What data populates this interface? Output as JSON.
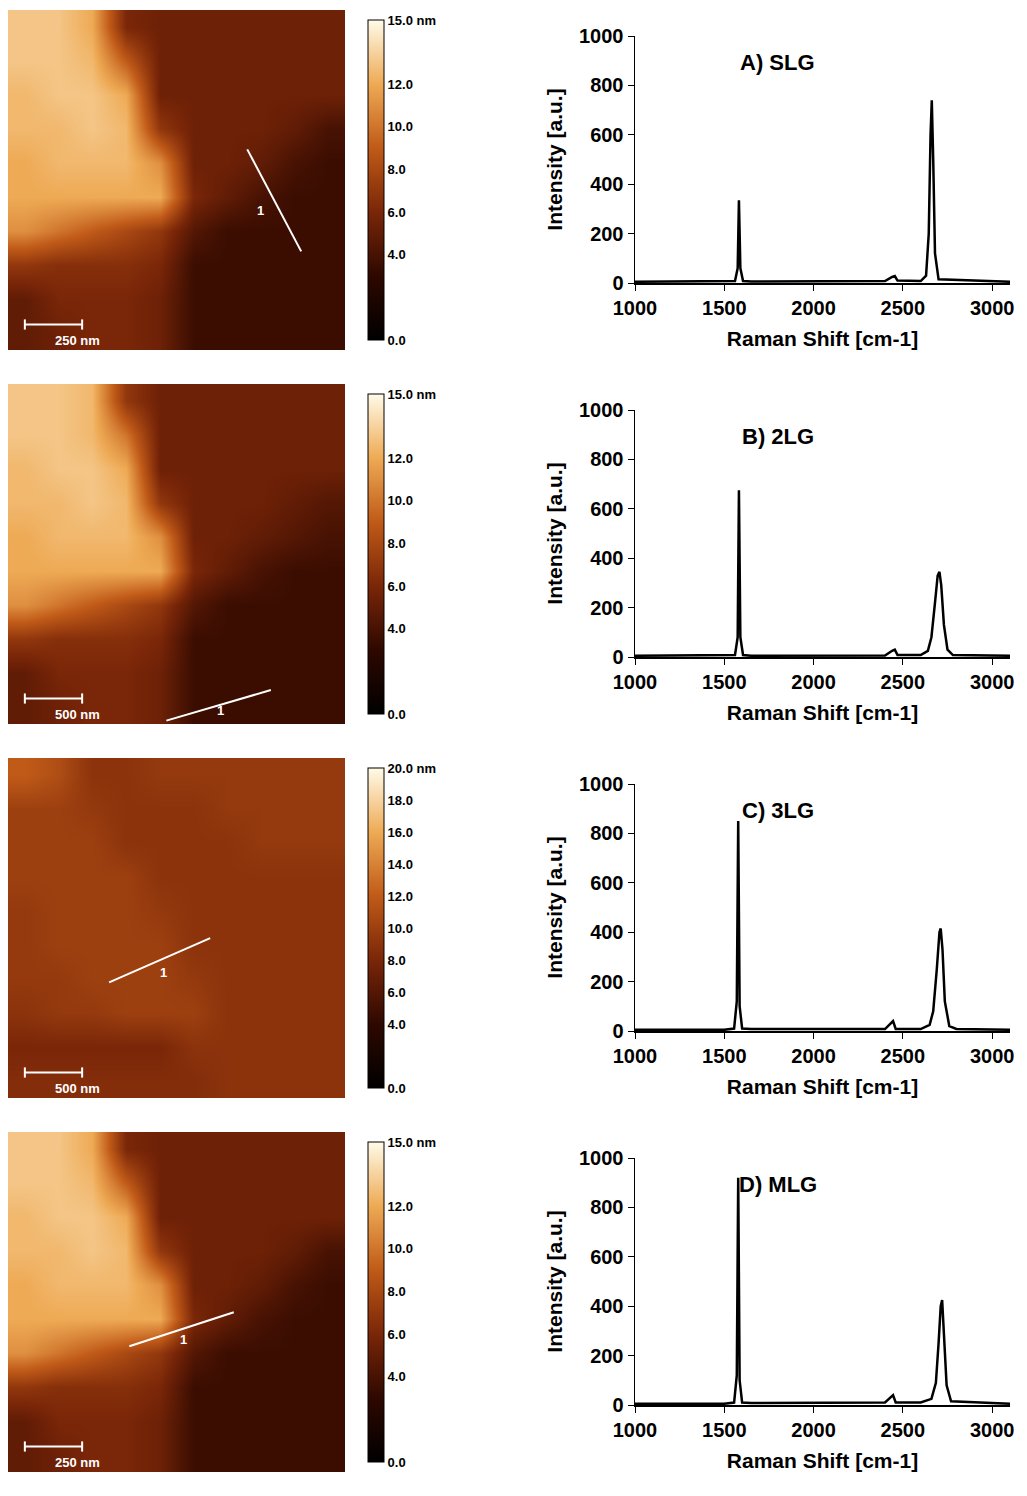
{
  "chart_data": [
    {
      "type": "heatmap",
      "z": [
        [
          13,
          13,
          12,
          6,
          5.5,
          5.5,
          5.5,
          5.5,
          5.5,
          5.5
        ],
        [
          13,
          13,
          12.5,
          9,
          5.5,
          5.5,
          5.5,
          5.5,
          5.5,
          5.5
        ],
        [
          12.5,
          13,
          13,
          12,
          5.5,
          5.5,
          5.5,
          5.5,
          5.5,
          5.5
        ],
        [
          12.5,
          12.5,
          13,
          12.5,
          7,
          5.5,
          5.5,
          5.5,
          5,
          4
        ],
        [
          12,
          12.5,
          12.5,
          12.5,
          11,
          5.5,
          5.5,
          5,
          4,
          3.5
        ],
        [
          12,
          12,
          12,
          12,
          12,
          6,
          5,
          4,
          3.5,
          3.5
        ],
        [
          11,
          10,
          9,
          8,
          7,
          4.5,
          3.5,
          3.5,
          3.5,
          3.5
        ],
        [
          7,
          6.5,
          6.5,
          6.5,
          6,
          3.5,
          3.5,
          3.5,
          3.5,
          3.5
        ],
        [
          5,
          6,
          6,
          6,
          5.5,
          3.5,
          3.5,
          3.5,
          3.5,
          3.5
        ],
        [
          5,
          5.5,
          6,
          6,
          5.5,
          3.5,
          3.5,
          3.5,
          3.5,
          3.5
        ]
      ],
      "zlim": [
        0,
        15
      ],
      "zticks": [
        {
          "value": 15,
          "label": "15.0 nm"
        },
        {
          "value": 12,
          "label": "12.0"
        },
        {
          "value": 10,
          "label": "10.0"
        },
        {
          "value": 8,
          "label": "8.0"
        },
        {
          "value": 6,
          "label": "6.0"
        },
        {
          "value": 4,
          "label": "4.0"
        },
        {
          "value": 0,
          "label": "0.0"
        }
      ],
      "scale_bar": "250 nm",
      "profile": {
        "label": "1",
        "x": [
          6.6,
          8.2
        ],
        "y": [
          3.6,
          6.6
        ],
        "label_x": 7.0,
        "label_y": 5.4
      }
    },
    {
      "type": "line",
      "title": "A) SLG",
      "x_label": "Raman Shift [cm-1]",
      "y_label": "Intensity [a.u.]",
      "color": "#000000",
      "x": [
        1000,
        1500,
        1560,
        1575,
        1582,
        1590,
        1605,
        1650,
        2400,
        2440,
        2455,
        2470,
        2600,
        2630,
        2645,
        2655,
        2662,
        2670,
        2680,
        2700,
        3100
      ],
      "values": [
        5,
        5,
        8,
        60,
        335,
        60,
        8,
        6,
        8,
        25,
        28,
        10,
        8,
        30,
        200,
        600,
        740,
        500,
        120,
        15,
        5
      ],
      "xlim": [
        1000,
        3100
      ],
      "xticks": [
        1000,
        1500,
        2000,
        2500,
        3000
      ],
      "ylim": [
        0,
        1000
      ],
      "yticks": [
        0,
        200,
        400,
        600,
        800,
        1000
      ]
    },
    {
      "type": "heatmap",
      "z": [
        [
          13,
          13,
          12.5,
          7,
          5.5,
          5.5,
          5.5,
          5.5,
          5.5,
          5.5
        ],
        [
          13,
          13,
          12.5,
          10,
          5.5,
          5.5,
          5.5,
          5.5,
          5.5,
          5.5
        ],
        [
          12.5,
          13,
          13,
          12,
          5.5,
          5.5,
          5.5,
          5.5,
          5.5,
          5.5
        ],
        [
          12.5,
          12.5,
          13,
          12.5,
          7,
          5.5,
          5.5,
          5.5,
          5,
          4.5
        ],
        [
          12,
          12.5,
          12.5,
          12.5,
          11,
          5.5,
          5.5,
          5,
          4.5,
          4
        ],
        [
          12,
          12,
          12,
          12,
          12,
          6,
          5,
          4,
          3.5,
          3.5
        ],
        [
          11,
          10,
          9,
          8,
          7,
          4.5,
          3.5,
          3.5,
          3.5,
          3.5
        ],
        [
          7,
          6.5,
          6.5,
          6.5,
          6,
          3.5,
          3.5,
          3.5,
          3.5,
          3.5
        ],
        [
          5,
          6,
          6,
          6,
          5.5,
          3.5,
          3.5,
          3.5,
          3.5,
          3.5
        ],
        [
          5,
          5.5,
          6,
          6,
          5.5,
          3.5,
          3.5,
          3.5,
          3.5,
          3.5
        ]
      ],
      "zlim": [
        0,
        15
      ],
      "zticks": [
        {
          "value": 15,
          "label": "15.0 nm"
        },
        {
          "value": 12,
          "label": "12.0"
        },
        {
          "value": 10,
          "label": "10.0"
        },
        {
          "value": 8,
          "label": "8.0"
        },
        {
          "value": 6,
          "label": "6.0"
        },
        {
          "value": 4,
          "label": "4.0"
        },
        {
          "value": 0,
          "label": "0.0"
        }
      ],
      "scale_bar": "500 nm",
      "profile": {
        "label": "1",
        "x": [
          4.2,
          7.3
        ],
        "y": [
          9.4,
          8.5
        ],
        "label_x": 5.8,
        "label_y": 9.1
      }
    },
    {
      "type": "line",
      "title": "B) 2LG",
      "x_label": "Raman Shift [cm-1]",
      "y_label": "Intensity [a.u.]",
      "color": "#000000",
      "x": [
        1000,
        1500,
        1560,
        1575,
        1582,
        1590,
        1605,
        1650,
        2400,
        2440,
        2455,
        2470,
        2600,
        2640,
        2660,
        2680,
        2695,
        2705,
        2715,
        2730,
        2750,
        2780,
        3100
      ],
      "values": [
        5,
        5,
        8,
        80,
        675,
        80,
        8,
        5,
        6,
        25,
        30,
        8,
        8,
        25,
        80,
        220,
        330,
        345,
        290,
        130,
        30,
        8,
        5
      ],
      "xlim": [
        1000,
        3100
      ],
      "xticks": [
        1000,
        1500,
        2000,
        2500,
        3000
      ],
      "ylim": [
        0,
        1000
      ],
      "yticks": [
        0,
        200,
        400,
        600,
        800,
        1000
      ]
    },
    {
      "type": "heatmap",
      "z": [
        [
          12,
          11,
          9,
          9,
          9.5,
          9.5,
          9.5,
          9.5,
          9.5,
          9.5
        ],
        [
          10,
          10,
          9.5,
          9,
          9,
          9,
          9.5,
          9.5,
          9.5,
          9.5
        ],
        [
          10,
          10,
          10,
          9,
          9,
          9,
          9,
          9.5,
          9.5,
          9.5
        ],
        [
          10,
          10,
          10,
          10,
          9,
          9,
          9,
          9,
          9,
          9
        ],
        [
          9.5,
          10,
          10,
          10,
          9.5,
          9,
          9,
          9,
          9,
          9
        ],
        [
          9.5,
          10,
          10,
          10,
          10,
          9,
          9,
          9,
          9,
          9
        ],
        [
          9.5,
          9.5,
          10,
          10,
          10,
          9.5,
          9,
          9,
          9,
          9
        ],
        [
          9,
          9.5,
          9.5,
          10,
          10,
          10,
          9,
          9,
          9,
          9
        ],
        [
          8,
          8,
          8,
          8,
          8,
          9,
          9,
          9,
          9,
          9
        ],
        [
          8.5,
          8.5,
          8.5,
          8.5,
          8.5,
          8.5,
          9,
          9,
          9,
          9
        ]
      ],
      "zlim": [
        0,
        20
      ],
      "zticks": [
        {
          "value": 20,
          "label": "20.0 nm"
        },
        {
          "value": 18,
          "label": "18.0"
        },
        {
          "value": 16,
          "label": "16.0"
        },
        {
          "value": 14,
          "label": "14.0"
        },
        {
          "value": 12,
          "label": "12.0"
        },
        {
          "value": 10,
          "label": "10.0"
        },
        {
          "value": 8,
          "label": "8.0"
        },
        {
          "value": 6,
          "label": "6.0"
        },
        {
          "value": 4,
          "label": "4.0"
        },
        {
          "value": 0,
          "label": "0.0"
        }
      ],
      "scale_bar": "500 nm",
      "profile": {
        "label": "1",
        "x": [
          2.5,
          5.5
        ],
        "y": [
          6.1,
          4.8
        ],
        "label_x": 4.1,
        "label_y": 5.8
      }
    },
    {
      "type": "line",
      "title": "C) 3LG",
      "x_label": "Raman Shift [cm-1]",
      "y_label": "Intensity [a.u.]",
      "color": "#000000",
      "x": [
        1000,
        1500,
        1555,
        1570,
        1578,
        1586,
        1600,
        1650,
        2400,
        2435,
        2445,
        2460,
        2600,
        2650,
        2670,
        2690,
        2705,
        2712,
        2722,
        2735,
        2760,
        2800,
        3100
      ],
      "values": [
        5,
        5,
        10,
        120,
        850,
        100,
        10,
        8,
        8,
        35,
        40,
        8,
        8,
        25,
        80,
        250,
        400,
        415,
        330,
        120,
        20,
        8,
        5
      ],
      "xlim": [
        1000,
        3100
      ],
      "xticks": [
        1000,
        1500,
        2000,
        2500,
        3000
      ],
      "ylim": [
        0,
        1000
      ],
      "yticks": [
        0,
        200,
        400,
        600,
        800,
        1000
      ]
    },
    {
      "type": "heatmap",
      "z": [
        [
          13,
          13,
          12,
          6,
          5.5,
          5.5,
          5.5,
          5.5,
          5.5,
          5.5
        ],
        [
          13,
          13,
          12.5,
          9,
          5.5,
          5.5,
          5.5,
          5.5,
          5.5,
          5.5
        ],
        [
          12.5,
          13,
          13,
          12,
          5.5,
          5.5,
          5.5,
          5.5,
          5.5,
          5.5
        ],
        [
          12.5,
          12.5,
          13,
          12.5,
          7,
          5.5,
          5.5,
          5.5,
          5,
          4
        ],
        [
          12,
          12.5,
          12.5,
          12.5,
          11,
          5.5,
          5.5,
          5,
          4,
          3.5
        ],
        [
          12,
          12,
          12,
          12,
          12,
          6,
          5,
          4,
          3.5,
          3.5
        ],
        [
          11,
          10,
          9,
          8,
          7,
          4.5,
          3.5,
          3.5,
          3.5,
          3.5
        ],
        [
          7,
          6.5,
          6.5,
          6.5,
          6,
          3.5,
          3.5,
          3.5,
          3.5,
          3.5
        ],
        [
          5,
          6,
          6,
          6,
          5.5,
          3.5,
          3.5,
          3.5,
          3.5,
          3.5
        ],
        [
          5,
          5.5,
          6,
          6,
          5.5,
          3.5,
          3.5,
          3.5,
          3.5,
          3.5
        ]
      ],
      "zlim": [
        0,
        15
      ],
      "zticks": [
        {
          "value": 15,
          "label": "15.0 nm"
        },
        {
          "value": 12,
          "label": "12.0"
        },
        {
          "value": 10,
          "label": "10.0"
        },
        {
          "value": 8,
          "label": "8.0"
        },
        {
          "value": 6,
          "label": "6.0"
        },
        {
          "value": 4,
          "label": "4.0"
        },
        {
          "value": 0,
          "label": "0.0"
        }
      ],
      "scale_bar": "250 nm",
      "profile": {
        "label": "1",
        "x": [
          3.1,
          6.2
        ],
        "y": [
          5.8,
          4.8
        ],
        "label_x": 4.7,
        "label_y": 5.6
      }
    },
    {
      "type": "line",
      "title": "D) MLG",
      "x_label": "Raman Shift [cm-1]",
      "y_label": "Intensity [a.u.]",
      "color": "#000000",
      "x": [
        1000,
        1500,
        1555,
        1570,
        1578,
        1586,
        1600,
        1650,
        2400,
        2435,
        2445,
        2460,
        2600,
        2660,
        2685,
        2700,
        2712,
        2720,
        2730,
        2745,
        2770,
        3100
      ],
      "values": [
        5,
        5,
        10,
        120,
        920,
        100,
        10,
        8,
        10,
        35,
        40,
        10,
        10,
        25,
        90,
        250,
        400,
        425,
        300,
        80,
        15,
        5
      ],
      "xlim": [
        1000,
        3100
      ],
      "xticks": [
        1000,
        1500,
        2000,
        2500,
        3000
      ],
      "ylim": [
        0,
        1000
      ],
      "yticks": [
        0,
        200,
        400,
        600,
        800,
        1000
      ]
    }
  ]
}
